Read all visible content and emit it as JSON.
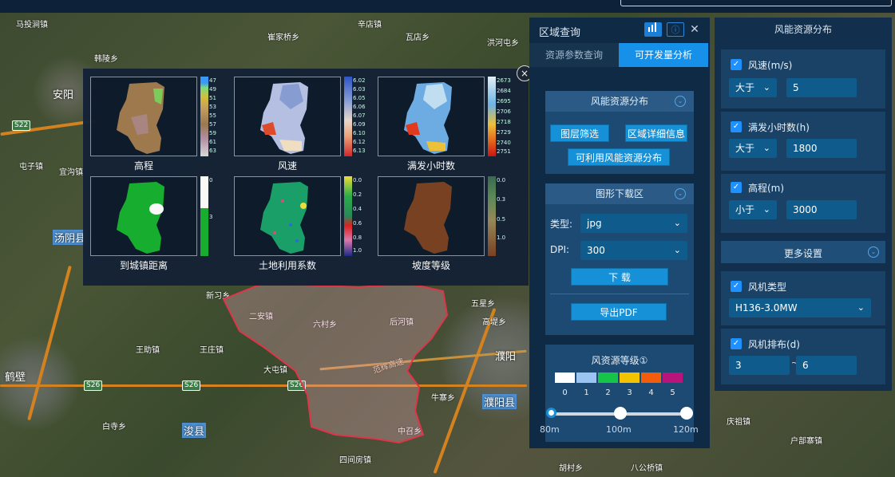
{
  "map": {
    "cities": [
      "安阳",
      "汤阴县",
      "鹤壁",
      "浚县",
      "濮阳",
      "濮阳县"
    ],
    "towns": [
      "马投涧镇",
      "崔家桥乡",
      "辛店镇",
      "瓦店乡",
      "洪河屯乡",
      "韩陵乡",
      "宜沟镇",
      "王庄镇",
      "大屯镇",
      "六村乡",
      "二安镇",
      "后河镇",
      "五星乡",
      "王助镇",
      "牛寨乡",
      "中召乡",
      "白寺乡",
      "四间房镇",
      "新习乡",
      "胡村乡",
      "八公桥镇",
      "庆祖镇",
      "户部寨镇",
      "高堤乡",
      "屯子镇"
    ],
    "highways": [
      "S22",
      "S26",
      "S26",
      "S26"
    ],
    "expressway": "范辉高速"
  },
  "popup": {
    "close": "×",
    "thumbs": [
      {
        "caption": "高程",
        "ticks": [
          "47",
          "49",
          "51",
          "53",
          "55",
          "57",
          "59",
          "61",
          "63"
        ]
      },
      {
        "caption": "风速",
        "ticks": [
          "6.02",
          "6.03",
          "6.05",
          "6.06",
          "6.07",
          "6.09",
          "6.10",
          "6.12",
          "6.13"
        ]
      },
      {
        "caption": "满发小时数",
        "ticks": [
          "2673",
          "2684",
          "2695",
          "2706",
          "2718",
          "2729",
          "2740",
          "2751"
        ]
      },
      {
        "caption": "到城镇距离",
        "ticks": [
          "0",
          "3"
        ]
      },
      {
        "caption": "土地利用系数",
        "ticks": [
          "0.0",
          "0.2",
          "0.4",
          "0.6",
          "0.8",
          "1.0"
        ]
      },
      {
        "caption": "坡度等级",
        "ticks": [
          "0.0",
          "0.3",
          "0.5",
          "1.0"
        ]
      }
    ]
  },
  "query_panel": {
    "title": "区域查询",
    "tabs": [
      "资源参数查询",
      "可开发量分析"
    ],
    "wind_section": {
      "title": "风能资源分布",
      "buttons": [
        "图层筛选",
        "区域详细信息",
        "可利用风能资源分布"
      ]
    },
    "download_section": {
      "title": "图形下载区",
      "type_label": "类型:",
      "type_value": "jpg",
      "dpi_label": "DPI:",
      "dpi_value": "300",
      "download_btn": "下 载",
      "export_btn": "导出PDF"
    },
    "grade_section": {
      "title": "风资源等级①",
      "levels": [
        "0",
        "1",
        "2",
        "3",
        "4",
        "5"
      ],
      "colors": [
        "#ffffff",
        "#9cc4f2",
        "#16c44a",
        "#f2c300",
        "#f25c0a",
        "#b8147c"
      ],
      "heights": [
        "80m",
        "100m",
        "120m"
      ]
    }
  },
  "resource_panel": {
    "title": "风能资源分布",
    "wind_speed": {
      "label": "风速(m/s)",
      "op": "大于",
      "value": "5"
    },
    "full_hours": {
      "label": "满发小时数(h)",
      "op": "大于",
      "value": "1800"
    },
    "elevation": {
      "label": "高程(m)",
      "op": "小于",
      "value": "3000"
    },
    "more": "更多设置",
    "turbine_type": {
      "label": "风机类型",
      "value": "H136-3.0MW"
    },
    "layout": {
      "label": "风机排布(d)",
      "v1": "3",
      "sep": "~",
      "v2": "6"
    }
  }
}
